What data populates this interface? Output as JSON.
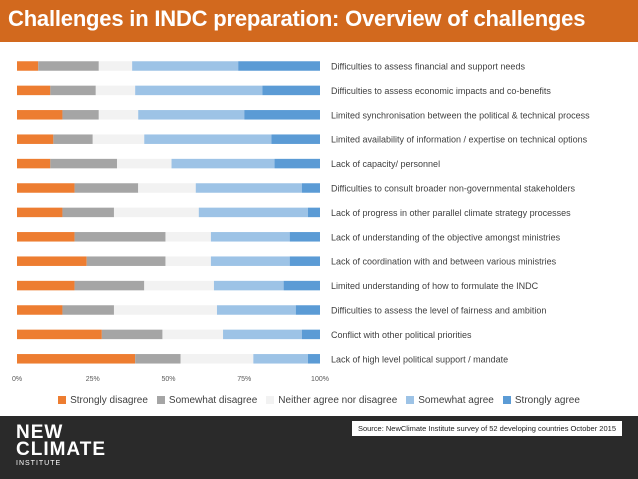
{
  "header": {
    "title": "Challenges in INDC preparation: Overview of challenges"
  },
  "colors": {
    "title_bar": "#d2691e",
    "strongly_disagree": "#ed7d31",
    "somewhat_disagree": "#a5a5a5",
    "neither": "#f2f2f2",
    "somewhat_agree": "#9dc3e6",
    "strongly_agree": "#5b9bd5",
    "footer": "#2a2a2a"
  },
  "chart_data": {
    "type": "bar",
    "orientation": "horizontal",
    "stacked": "100%",
    "title": "",
    "xlabel": "",
    "ylabel": "",
    "xlim": [
      0,
      100
    ],
    "x_ticks": [
      "0%",
      "25%",
      "50%",
      "75%",
      "100%"
    ],
    "grid": false,
    "legend_position": "bottom",
    "categories": [
      "Difficulties to assess financial and support needs",
      "Difficulties to assess economic impacts and co-benefits",
      "Limited synchronisation between the political & technical process",
      "Limited availability of information / expertise on technical options",
      "Lack of capacity/ personnel",
      "Difficulties to consult broader non-governmental stakeholders",
      "Lack of progress in other parallel climate strategy processes",
      "Lack of understanding of the objective amongst ministries",
      "Lack of coordination with and between various ministries",
      "Limited understanding of how to formulate the INDC",
      "Difficulties to assess the level of fairness and ambition",
      "Conflict with other political priorities",
      "Lack of high level political support / mandate"
    ],
    "series": [
      {
        "name": "Strongly disagree",
        "color": "#ed7d31",
        "values": [
          7,
          11,
          15,
          12,
          11,
          19,
          15,
          19,
          23,
          19,
          15,
          28,
          39
        ]
      },
      {
        "name": "Somewhat disagree",
        "color": "#a5a5a5",
        "values": [
          20,
          15,
          12,
          13,
          22,
          21,
          17,
          30,
          26,
          23,
          17,
          20,
          15
        ]
      },
      {
        "name": "Neither agree nor disagree",
        "color": "#f2f2f2",
        "values": [
          11,
          13,
          13,
          17,
          18,
          19,
          28,
          15,
          15,
          23,
          34,
          20,
          24
        ]
      },
      {
        "name": "Somewhat agree",
        "color": "#9dc3e6",
        "values": [
          35,
          42,
          35,
          42,
          34,
          35,
          36,
          26,
          26,
          23,
          26,
          26,
          18
        ]
      },
      {
        "name": "Strongly agree",
        "color": "#5b9bd5",
        "values": [
          27,
          19,
          25,
          16,
          15,
          6,
          4,
          10,
          10,
          12,
          8,
          6,
          4
        ]
      }
    ]
  },
  "footer": {
    "source": "Source: NewClimate Institute survey of 52 developing countries October 2015",
    "logo_line1": "NEW",
    "logo_line2": "CLIMATE",
    "logo_sub": "INSTITUTE"
  }
}
